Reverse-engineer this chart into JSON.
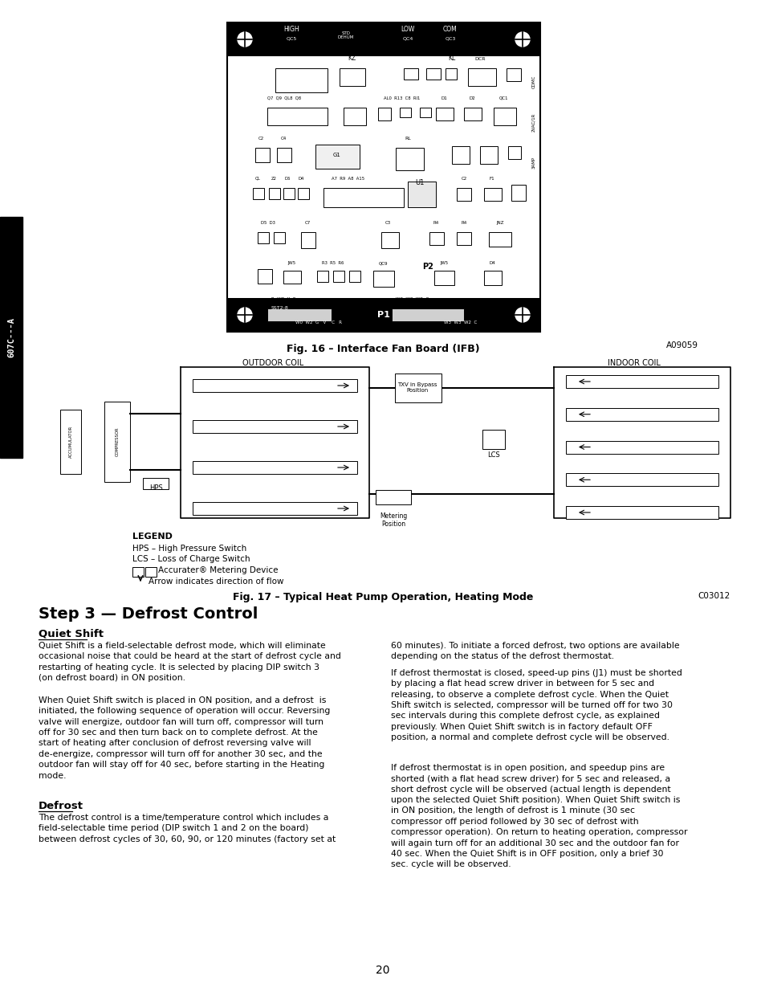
{
  "page_bg": "#ffffff",
  "sidebar_bg": "#000000",
  "sidebar_text": "607C---A",
  "fig16_caption": "Fig. 16 – Interface Fan Board (IFB)",
  "fig17_caption": "Fig. 17 – Typical Heat Pump Operation, Heating Mode",
  "fig16_code": "A09059",
  "fig17_code": "C03012",
  "step_title": "Step 3 — Defrost Control",
  "section1_title": "Quiet Shift",
  "section1_p1": "Quiet Shift is a field-selectable defrost mode, which will eliminate\noccasional noise that could be heard at the start of defrost cycle and\nrestarting of heating cycle. It is selected by placing DIP switch 3\n(on defrost board) in ON position.",
  "section1_p2": "When Quiet Shift switch is placed in ON position, and a defrost  is\ninitiated, the following sequence of operation will occur. Reversing\nvalve will energize, outdoor fan will turn off, compressor will turn\noff for 30 sec and then turn back on to complete defrost. At the\nstart of heating after conclusion of defrost reversing valve will\nde-energize, compressor will turn off for another 30 sec, and the\noutdoor fan will stay off for 40 sec, before starting in the Heating\nmode.",
  "section2_title": "Defrost",
  "section2_p1": "The defrost control is a time/temperature control which includes a\nfield-selectable time period (DIP switch 1 and 2 on the board)\nbetween defrost cycles of 30, 60, 90, or 120 minutes (factory set at",
  "right_p1": "60 minutes). To initiate a forced defrost, two options are available\ndepending on the status of the defrost thermostat.",
  "right_p2": "If defrost thermostat is closed, speed-up pins (J1) must be shorted\nby placing a flat head screw driver in between for 5 sec and\nreleasing, to observe a complete defrost cycle. When the Quiet\nShift switch is selected, compressor will be turned off for two 30\nsec intervals during this complete defrost cycle, as explained\npreviously. When Quiet Shift switch is in factory default OFF\nposition, a normal and complete defrost cycle will be observed.",
  "right_p3": "If defrost thermostat is in open position, and speedup pins are\nshorted (with a flat head screw driver) for 5 sec and released, a\nshort defrost cycle will be observed (actual length is dependent\nupon the selected Quiet Shift position). When Quiet Shift switch is\nin ON position, the length of defrost is 1 minute (30 sec\ncompressor off period followed by 30 sec of defrost with\ncompressor operation). On return to heating operation, compressor\nwill again turn off for an additional 30 sec and the outdoor fan for\n40 sec. When the Quiet Shift is in OFF position, only a brief 30\nsec. cycle will be observed.",
  "page_number": "20",
  "legend_title": "LEGEND",
  "legend_items": [
    "HPS – High Pressure Switch",
    "LCS – Loss of Charge Switch",
    "Accurater® Metering Device",
    "Arrow indicates direction of flow"
  ]
}
